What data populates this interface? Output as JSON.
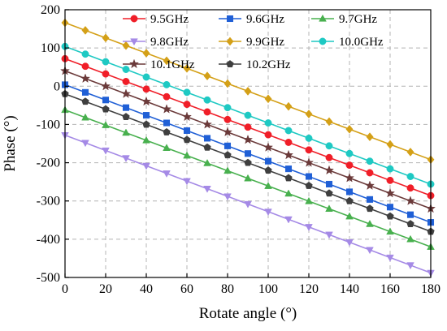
{
  "chart_data": {
    "type": "line",
    "title": "",
    "xlabel": "Rotate angle (°)",
    "ylabel": "Phase (°)",
    "xlim": [
      0,
      180
    ],
    "ylim": [
      -500,
      200
    ],
    "xticks": [
      0,
      20,
      40,
      60,
      80,
      100,
      120,
      140,
      160,
      180
    ],
    "yticks": [
      200,
      100,
      0,
      -100,
      -200,
      -300,
      -400,
      -500
    ],
    "grid": true,
    "legend_position": "top-right",
    "x": [
      0,
      10,
      20,
      30,
      40,
      50,
      60,
      70,
      80,
      90,
      100,
      110,
      120,
      130,
      140,
      150,
      160,
      170,
      180
    ],
    "series": [
      {
        "name": "9.5GHz",
        "color": "#f01e28",
        "marker": "circle",
        "start": 72,
        "end": -286
      },
      {
        "name": "9.6GHz",
        "color": "#1f5fd6",
        "marker": "square",
        "start": 4,
        "end": -356
      },
      {
        "name": "9.7GHz",
        "color": "#48b04e",
        "marker": "triangle-up",
        "start": -62,
        "end": -420
      },
      {
        "name": "9.8GHz",
        "color": "#a58ae6",
        "marker": "triangle-down",
        "start": -128,
        "end": -488
      },
      {
        "name": "9.9GHz",
        "color": "#d4a017",
        "marker": "diamond",
        "start": 166,
        "end": -192
      },
      {
        "name": "10.0GHz",
        "color": "#1ec9c3",
        "marker": "circle",
        "start": 104,
        "end": -256
      },
      {
        "name": "10.1GHz",
        "color": "#6b3a3a",
        "marker": "star",
        "start": 40,
        "end": -320
      },
      {
        "name": "10.2GHz",
        "color": "#3f3f3f",
        "marker": "pentagon",
        "start": -20,
        "end": -380
      }
    ]
  }
}
